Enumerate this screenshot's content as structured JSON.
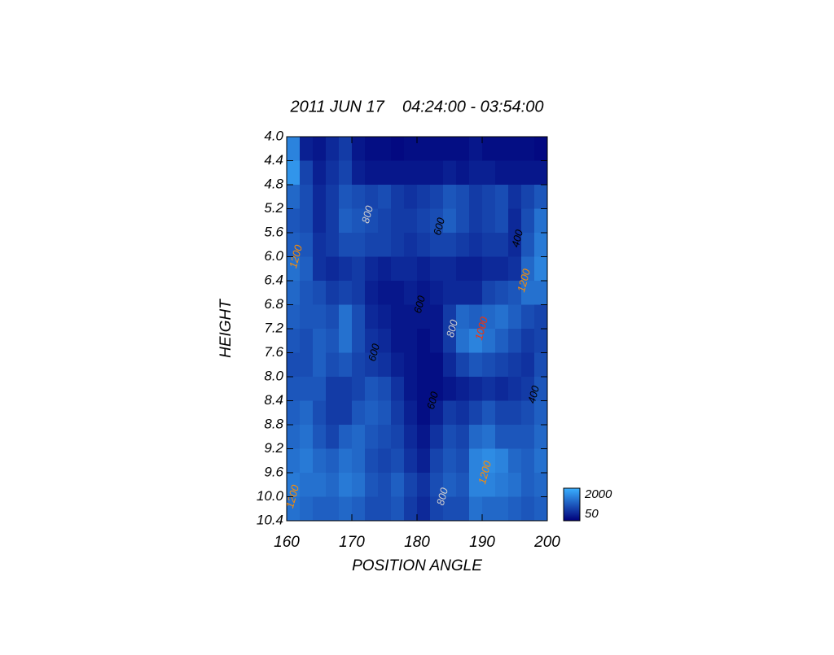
{
  "chart_data": {
    "type": "heatmap",
    "title": "2011 JUN 17    04:24:00 - 03:54:00",
    "x_label": "POSITION ANGLE",
    "y_label": "HEIGHT",
    "xlim": [
      160,
      200
    ],
    "ylim": [
      4.0,
      10.4
    ],
    "xticks": [
      160,
      170,
      180,
      190,
      200
    ],
    "yticks": [
      {
        "value": 4.0,
        "label": "4.0"
      },
      {
        "value": 4.4,
        "label": "4.4"
      },
      {
        "value": 4.8,
        "label": "4.8"
      },
      {
        "value": 5.2,
        "label": "5.2"
      },
      {
        "value": 5.6,
        "label": "5.6"
      },
      {
        "value": 6.0,
        "label": "6.0"
      },
      {
        "value": 6.4,
        "label": "6.4"
      },
      {
        "value": 6.8,
        "label": "6.8"
      },
      {
        "value": 7.2,
        "label": "7.2"
      },
      {
        "value": 7.6,
        "label": "7.6"
      },
      {
        "value": 8.0,
        "label": "8.0"
      },
      {
        "value": 8.4,
        "label": "8.4"
      },
      {
        "value": 8.8,
        "label": "8.8"
      },
      {
        "value": 9.2,
        "label": "9.2"
      },
      {
        "value": 9.6,
        "label": "9.6"
      },
      {
        "value": 10.0,
        "label": "10.0"
      },
      {
        "value": 10.4,
        "label": "10.4"
      }
    ],
    "x": [
      161,
      163,
      165,
      167,
      169,
      171,
      173,
      175,
      177,
      179,
      181,
      183,
      185,
      187,
      189,
      191,
      193,
      195,
      197,
      199
    ],
    "y": [
      4.2,
      4.6,
      5.0,
      5.4,
      5.8,
      6.2,
      6.6,
      7.0,
      7.4,
      7.8,
      8.2,
      8.6,
      9.0,
      9.4,
      9.8,
      10.2
    ],
    "z": [
      [
        1500,
        400,
        300,
        500,
        700,
        300,
        200,
        200,
        150,
        200,
        200,
        200,
        200,
        200,
        300,
        200,
        200,
        200,
        200,
        150
      ],
      [
        1700,
        800,
        400,
        600,
        800,
        400,
        300,
        300,
        300,
        300,
        300,
        300,
        400,
        300,
        400,
        400,
        300,
        300,
        300,
        300
      ],
      [
        1200,
        900,
        500,
        700,
        1000,
        900,
        800,
        900,
        700,
        600,
        700,
        800,
        1000,
        900,
        700,
        800,
        900,
        600,
        800,
        1000
      ],
      [
        1000,
        900,
        500,
        700,
        1100,
        1000,
        900,
        800,
        700,
        700,
        800,
        900,
        1100,
        900,
        700,
        800,
        900,
        500,
        900,
        1300
      ],
      [
        1100,
        1000,
        600,
        700,
        900,
        900,
        800,
        800,
        700,
        600,
        700,
        800,
        800,
        700,
        600,
        700,
        700,
        500,
        1000,
        1400
      ],
      [
        1300,
        1100,
        600,
        500,
        600,
        700,
        500,
        400,
        500,
        500,
        400,
        500,
        500,
        400,
        400,
        500,
        500,
        600,
        1200,
        1500
      ],
      [
        1200,
        1000,
        900,
        700,
        800,
        700,
        400,
        300,
        300,
        400,
        300,
        400,
        500,
        500,
        500,
        800,
        900,
        1000,
        1300,
        1300
      ],
      [
        1100,
        1000,
        1000,
        900,
        1300,
        900,
        500,
        400,
        300,
        300,
        300,
        300,
        700,
        1200,
        1100,
        1200,
        1300,
        1100,
        900,
        800
      ],
      [
        1000,
        900,
        1100,
        1000,
        1300,
        900,
        600,
        500,
        300,
        300,
        200,
        300,
        700,
        1300,
        1500,
        1300,
        1100,
        900,
        700,
        800
      ],
      [
        900,
        900,
        1100,
        900,
        1000,
        800,
        700,
        600,
        400,
        300,
        200,
        200,
        500,
        800,
        1000,
        900,
        800,
        700,
        600,
        900
      ],
      [
        1000,
        1000,
        1000,
        700,
        700,
        800,
        1000,
        900,
        600,
        300,
        200,
        200,
        300,
        400,
        500,
        600,
        500,
        600,
        700,
        1000
      ],
      [
        1100,
        1200,
        900,
        700,
        700,
        1000,
        1100,
        1000,
        700,
        400,
        200,
        400,
        700,
        600,
        800,
        1000,
        800,
        800,
        900,
        1100
      ],
      [
        1200,
        1300,
        1000,
        800,
        1100,
        1200,
        1000,
        900,
        800,
        500,
        300,
        600,
        900,
        800,
        1200,
        1300,
        1000,
        1000,
        1000,
        1200
      ],
      [
        1300,
        1400,
        1200,
        1100,
        1300,
        1200,
        900,
        800,
        900,
        600,
        400,
        800,
        1000,
        900,
        1500,
        1600,
        1500,
        1200,
        1100,
        1300
      ],
      [
        1400,
        1300,
        1300,
        1200,
        1400,
        1300,
        1000,
        900,
        1100,
        800,
        600,
        900,
        1100,
        1000,
        1500,
        1500,
        1400,
        1300,
        1100,
        1200
      ],
      [
        1300,
        1200,
        1100,
        1100,
        1200,
        1100,
        900,
        900,
        1000,
        700,
        500,
        800,
        900,
        900,
        1300,
        1200,
        1200,
        1100,
        1000,
        1100
      ]
    ],
    "colormap": [
      "#00007a",
      "#3ab0ff"
    ],
    "colorbar": {
      "min": 50,
      "max": 2000,
      "ticks": [
        2000,
        50
      ]
    },
    "annotations": [
      {
        "text": "1200",
        "x": 161.5,
        "y": 6.0,
        "color": "#ff8c00"
      },
      {
        "text": "800",
        "x": 172.5,
        "y": 5.3,
        "color": "#d0d0d0"
      },
      {
        "text": "600",
        "x": 183.5,
        "y": 5.5,
        "color": "#000000"
      },
      {
        "text": "400",
        "x": 195.5,
        "y": 5.7,
        "color": "#000000"
      },
      {
        "text": "1200",
        "x": 196.5,
        "y": 6.4,
        "color": "#ff8c00"
      },
      {
        "text": "600",
        "x": 180.5,
        "y": 6.8,
        "color": "#000000"
      },
      {
        "text": "800",
        "x": 185.5,
        "y": 7.2,
        "color": "#d0d0d0"
      },
      {
        "text": "1000",
        "x": 190,
        "y": 7.2,
        "color": "#ff3000"
      },
      {
        "text": "600",
        "x": 173.5,
        "y": 7.6,
        "color": "#000000"
      },
      {
        "text": "600",
        "x": 182.5,
        "y": 8.4,
        "color": "#000000"
      },
      {
        "text": "400",
        "x": 198,
        "y": 8.3,
        "color": "#000000"
      },
      {
        "text": "1200",
        "x": 190.5,
        "y": 9.6,
        "color": "#ff8c00"
      },
      {
        "text": "1200",
        "x": 161,
        "y": 10.0,
        "color": "#ff8c00"
      },
      {
        "text": "800",
        "x": 184,
        "y": 10.0,
        "color": "#d0d0d0"
      }
    ]
  }
}
